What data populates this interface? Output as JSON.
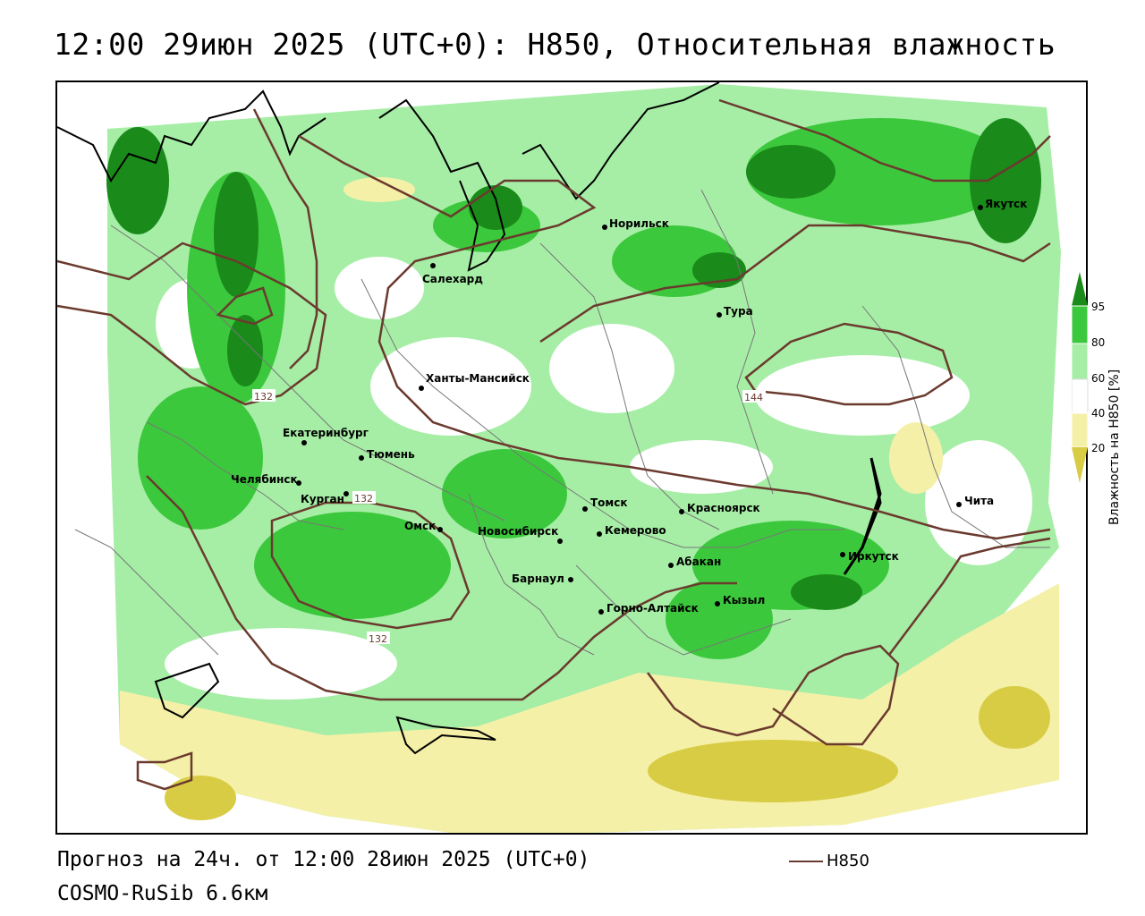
{
  "title": "12:00 29июн 2025 (UTC+0): H850, Относительная влажность",
  "forecast_text": "Прогноз на 24ч. от 12:00 28июн 2025 (UTC+0)",
  "model_text": "COSMO-RuSib 6.6км",
  "line_legend": {
    "label": "H850",
    "color": "#6b3a2e"
  },
  "colorbar": {
    "title": "Влажность на H850 [%]",
    "ticks": [
      "95",
      "80",
      "60",
      "40",
      "20"
    ],
    "bins": [
      {
        "range": ">95",
        "color": "#1a8a1a"
      },
      {
        "range": "80-95",
        "color": "#3cc83c"
      },
      {
        "range": "60-80",
        "color": "#a6eea6"
      },
      {
        "range": "40-60",
        "color": "#ffffff"
      },
      {
        "range": "20-40",
        "color": "#f5f0a8"
      },
      {
        "range": "<20",
        "color": "#d8cc44"
      }
    ]
  },
  "contour_labels": [
    "132",
    "132",
    "132",
    "144"
  ],
  "cities": [
    "Якутск",
    "Норильск",
    "Салехард",
    "Тура",
    "Ханты-Мансийск",
    "Екатеринбург",
    "Тюмень",
    "Челябинск",
    "Курган",
    "Омск",
    "Новосибирск",
    "Томск",
    "Красноярск",
    "Кемерово",
    "Барнаул",
    "Абакан",
    "Горно-Алтайск",
    "Кызыл",
    "Иркутск",
    "Чита"
  ]
}
